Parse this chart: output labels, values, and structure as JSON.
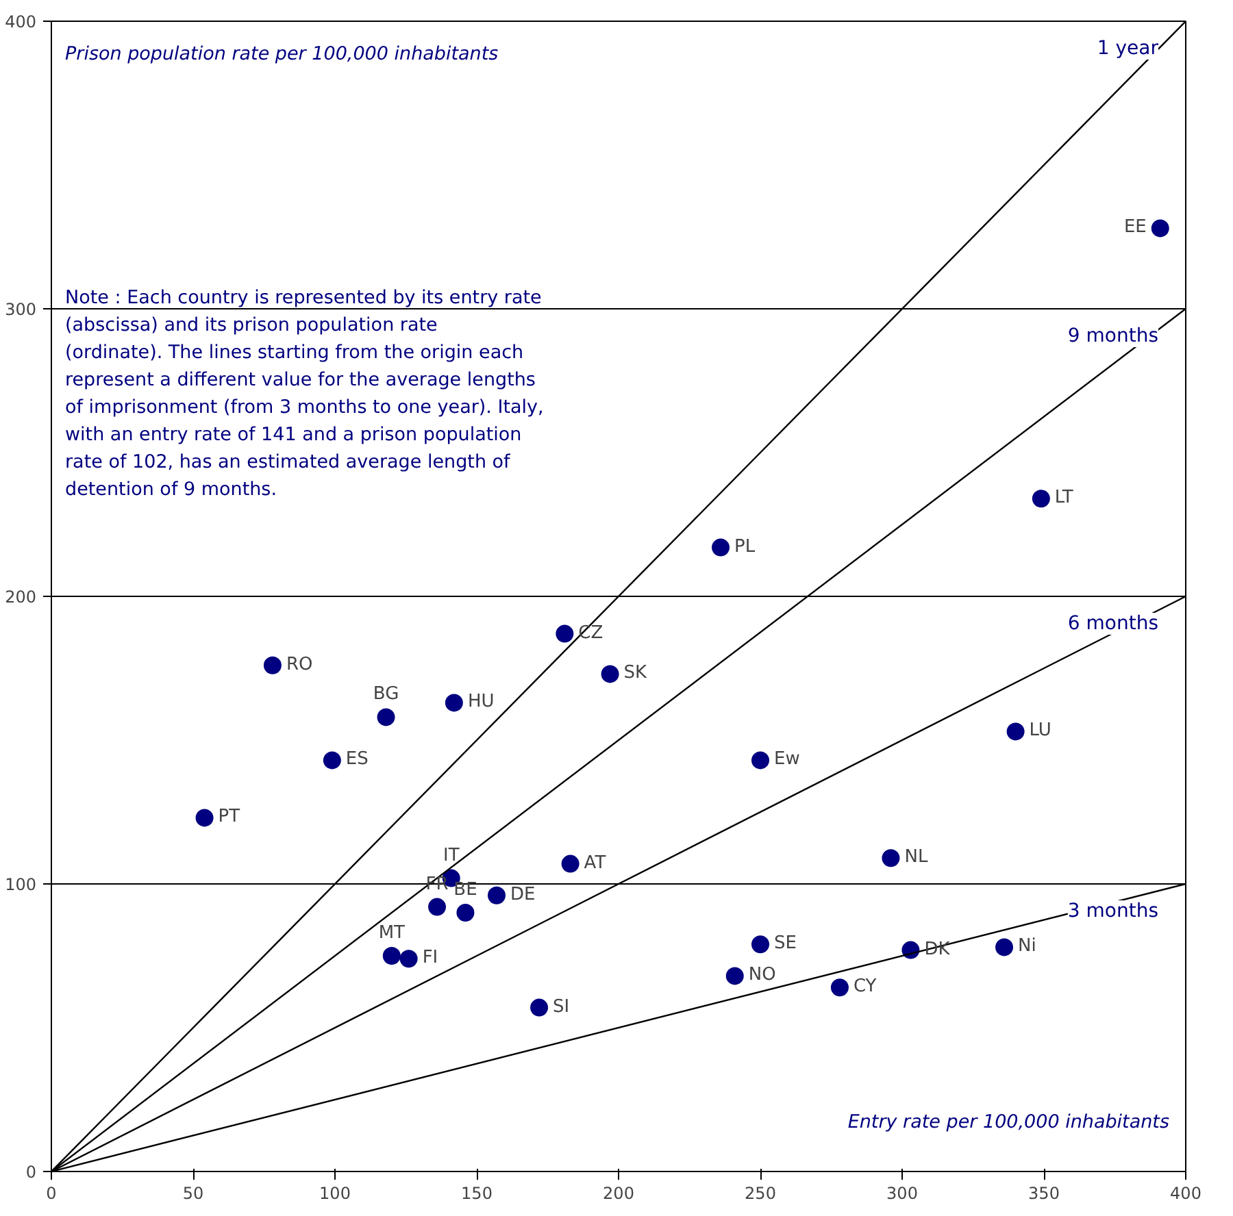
{
  "chart_data": {
    "type": "scatter",
    "xlabel": "Entry rate per 100,000 inhabitants",
    "ylabel": "Prison population rate per 100,000 inhabitants",
    "xlim": [
      0,
      400
    ],
    "ylim": [
      0,
      400
    ],
    "xticks": [
      0,
      50,
      100,
      150,
      200,
      250,
      300,
      350,
      400
    ],
    "yticks": [
      0,
      100,
      200,
      300,
      400
    ],
    "grid": "y",
    "marker": "circle",
    "series": [
      {
        "color": "#000080",
        "x": [
          391,
          349,
          236,
          181,
          197,
          78,
          142,
          118,
          99,
          250,
          340,
          54,
          296,
          183,
          141,
          157,
          136,
          146,
          120,
          126,
          250,
          303,
          336,
          241,
          278,
          172
        ],
        "values": [
          328,
          234,
          217,
          187,
          173,
          176,
          163,
          158,
          143,
          143,
          153,
          123,
          109,
          107,
          102,
          96,
          92,
          90,
          75,
          74,
          79,
          77,
          78,
          68,
          64,
          57
        ]
      },
      {
        "type": "line",
        "marker": "none",
        "name": "1 year",
        "color": "#000000",
        "x": [
          0,
          400
        ],
        "values": [
          0,
          400
        ]
      },
      {
        "type": "line",
        "marker": "none",
        "name": "9 months",
        "color": "#000000",
        "x": [
          0,
          400
        ],
        "values": [
          0,
          300
        ]
      },
      {
        "type": "line",
        "marker": "none",
        "name": "6 months",
        "color": "#000000",
        "x": [
          0,
          400
        ],
        "values": [
          0,
          200
        ]
      },
      {
        "type": "line",
        "marker": "none",
        "name": "3 months",
        "color": "#000000",
        "x": [
          0,
          400
        ],
        "values": [
          0,
          100
        ]
      }
    ],
    "annotations": [
      {
        "text": "EE",
        "x": 391,
        "y": 328
      },
      {
        "text": "LT",
        "x": 349,
        "y": 234
      },
      {
        "text": "PL",
        "x": 236,
        "y": 217
      },
      {
        "text": "CZ",
        "x": 181,
        "y": 187
      },
      {
        "text": "SK",
        "x": 197,
        "y": 173
      },
      {
        "text": "RO",
        "x": 78,
        "y": 176
      },
      {
        "text": "HU",
        "x": 142,
        "y": 163
      },
      {
        "text": "BG",
        "x": 118,
        "y": 158
      },
      {
        "text": "ES",
        "x": 99,
        "y": 143
      },
      {
        "text": "Ew",
        "x": 250,
        "y": 143
      },
      {
        "text": "LU",
        "x": 340,
        "y": 153
      },
      {
        "text": "PT",
        "x": 54,
        "y": 123
      },
      {
        "text": "NL",
        "x": 296,
        "y": 109
      },
      {
        "text": "AT",
        "x": 183,
        "y": 107
      },
      {
        "text": "IT",
        "x": 141,
        "y": 102
      },
      {
        "text": "DE",
        "x": 157,
        "y": 96
      },
      {
        "text": "FR",
        "x": 136,
        "y": 92
      },
      {
        "text": "BE",
        "x": 146,
        "y": 90
      },
      {
        "text": "MT",
        "x": 120,
        "y": 75
      },
      {
        "text": "FI",
        "x": 126,
        "y": 74
      },
      {
        "text": "SE",
        "x": 250,
        "y": 79
      },
      {
        "text": "DK",
        "x": 303,
        "y": 77
      },
      {
        "text": "Ni",
        "x": 336,
        "y": 78
      },
      {
        "text": "NO",
        "x": 241,
        "y": 68
      },
      {
        "text": "CY",
        "x": 278,
        "y": 64
      },
      {
        "text": "SI",
        "x": 172,
        "y": 57
      },
      "Note : Each country is represented by its entry rate (abscissa) and its prison population rate (ordinate). The lines starting from the origin each represent a different value for the average lengths of imprisonment (from 3 months to one year). Italy, with an entry rate of 141 and a prison population rate of 102, has an estimated average length of detention of 9 months."
    ]
  }
}
